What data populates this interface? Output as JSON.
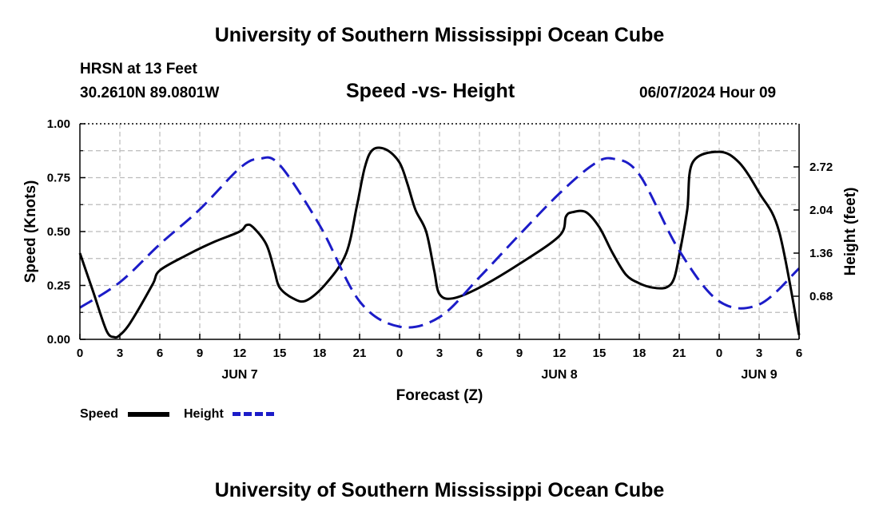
{
  "page": {
    "title_top": "University of Southern Mississippi Ocean Cube",
    "title_bottom": "University of Southern Mississippi Ocean Cube",
    "station": "HRSN at 13 Feet",
    "coords": "30.2610N  89.0801W",
    "subtitle": "Speed -vs- Height",
    "datetime": "06/07/2024 Hour 09"
  },
  "legend": {
    "speed_label": "Speed",
    "height_label": "Height"
  },
  "colors": {
    "speed": "#000000",
    "height": "#1c1cc8",
    "grid": "#bbbbbb"
  },
  "chart_data": {
    "type": "line",
    "title": "Speed -vs- Height",
    "xlabel": "Forecast (Z)",
    "ylabel": "Speed (Knots)",
    "y2label": "Height (feet)",
    "x_range_hours": [
      0,
      54
    ],
    "ylim": [
      0,
      1
    ],
    "y2lim": [
      0,
      3.4
    ],
    "y_ticks": [
      0,
      0.25,
      0.5,
      0.75,
      1.0
    ],
    "y_tick_labels": [
      "0.00",
      "0.25",
      "0.50",
      "0.75",
      "1.00"
    ],
    "y2_ticks": [
      0.68,
      1.36,
      2.04,
      2.72
    ],
    "y2_tick_labels": [
      "0.68",
      "1.36",
      "2.04",
      "2.72"
    ],
    "x_ticks": [
      0,
      3,
      6,
      9,
      12,
      15,
      18,
      21,
      24,
      27,
      30,
      33,
      36,
      39,
      42,
      45,
      48,
      51,
      54
    ],
    "x_tick_labels": [
      "0",
      "3",
      "6",
      "9",
      "12",
      "15",
      "18",
      "21",
      "0",
      "3",
      "6",
      "9",
      "12",
      "15",
      "18",
      "21",
      "0",
      "3",
      "6"
    ],
    "date_labels": [
      {
        "hour": 12,
        "label": "JUN 7"
      },
      {
        "hour": 36,
        "label": "JUN 8"
      },
      {
        "hour": 51,
        "label": "JUN 9"
      }
    ],
    "grid": true,
    "series": [
      {
        "name": "Speed",
        "axis": "left",
        "style": "solid",
        "x": [
          0,
          1,
          2,
          2.6,
          3,
          3.6,
          4.5,
          5.5,
          6,
          8,
          10,
          12,
          12.5,
          13,
          14,
          14.6,
          15,
          16,
          17,
          18.5,
          20,
          20.8,
          21.4,
          22,
          23,
          24,
          24.6,
          25.2,
          26,
          26.6,
          27,
          28,
          30,
          33,
          36,
          36.5,
          37,
          38,
          39,
          40,
          41,
          42,
          43,
          44,
          44.6,
          45,
          45.6,
          46,
          48,
          49.5,
          51,
          52.5,
          54
        ],
        "values": [
          0.4,
          0.22,
          0.04,
          0.01,
          0.02,
          0.06,
          0.15,
          0.26,
          0.32,
          0.39,
          0.45,
          0.5,
          0.53,
          0.52,
          0.44,
          0.32,
          0.24,
          0.19,
          0.18,
          0.26,
          0.4,
          0.62,
          0.8,
          0.88,
          0.88,
          0.82,
          0.72,
          0.6,
          0.5,
          0.32,
          0.21,
          0.19,
          0.24,
          0.35,
          0.48,
          0.57,
          0.59,
          0.59,
          0.52,
          0.4,
          0.3,
          0.26,
          0.24,
          0.24,
          0.28,
          0.39,
          0.6,
          0.82,
          0.87,
          0.82,
          0.68,
          0.5,
          0.02
        ]
      },
      {
        "name": "Height",
        "axis": "right",
        "style": "dashed",
        "x": [
          0,
          3,
          6,
          9,
          12,
          13.5,
          15,
          18,
          21,
          24,
          27,
          30,
          33,
          36,
          38.5,
          40,
          42,
          45,
          48,
          51,
          54
        ],
        "values": [
          0.5,
          0.9,
          1.5,
          2.05,
          2.7,
          2.85,
          2.75,
          1.8,
          0.6,
          0.2,
          0.35,
          0.98,
          1.65,
          2.3,
          2.75,
          2.85,
          2.6,
          1.4,
          0.6,
          0.55,
          1.12
        ]
      }
    ]
  }
}
